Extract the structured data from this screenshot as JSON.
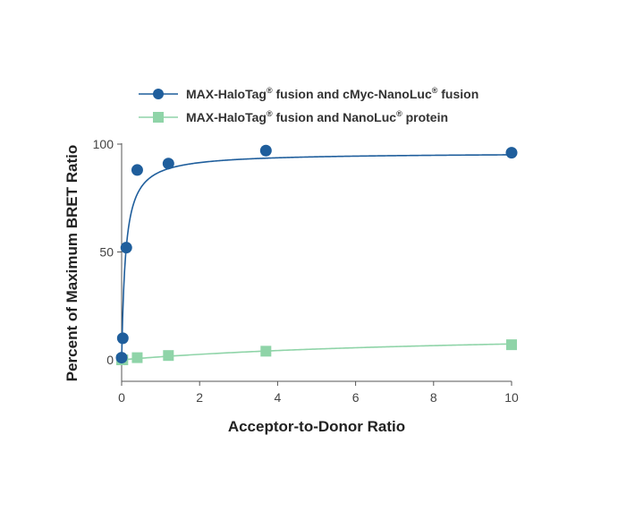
{
  "chart_data": {
    "type": "scatter",
    "xlabel": "Acceptor-to-Donor Ratio",
    "ylabel": "Percent of Maximum BRET Ratio",
    "xlim": [
      0,
      10
    ],
    "ylim": [
      -10,
      100
    ],
    "xticks": [
      0,
      2,
      4,
      6,
      8,
      10
    ],
    "yticks": [
      0,
      50,
      100
    ],
    "grid": false,
    "legend_position": "top",
    "series": [
      {
        "name": "MAX-HaloTag® fusion and cMyc-NanoLuc® fusion",
        "color": "#1f5e9c",
        "marker": "circle",
        "x": [
          0,
          0.03,
          0.12,
          0.4,
          1.2,
          3.7,
          10
        ],
        "y": [
          1,
          10,
          52,
          88,
          91,
          97,
          96
        ]
      },
      {
        "name": "MAX-HaloTag® fusion and NanoLuc® protein",
        "color": "#8fd4a8",
        "marker": "square",
        "x": [
          0,
          0.03,
          0.4,
          1.2,
          3.7,
          10
        ],
        "y": [
          0,
          0,
          1,
          2,
          4,
          7
        ]
      }
    ]
  },
  "legend": {
    "entries": [
      {
        "prefix": "MAX-HaloTag",
        "mid": " fusion and cMyc-NanoLuc",
        "suffix": " fusion",
        "reg1": "®",
        "reg2": "®"
      },
      {
        "prefix": "MAX-HaloTag",
        "mid": " fusion and NanoLuc",
        "suffix": " protein",
        "reg1": "®",
        "reg2": "®"
      }
    ]
  }
}
